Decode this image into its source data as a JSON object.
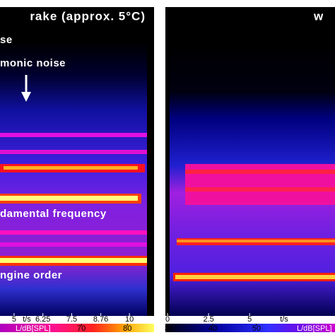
{
  "panels": [
    {
      "title": "rake (approx. 5°C)",
      "annotations": [
        "se",
        "monic noise",
        "damental frequency",
        "ngine order"
      ],
      "x_axis": {
        "label": "t/s",
        "xlim": [
          4.39,
          11.07
        ],
        "xticks": [
          5,
          6.25,
          7.5,
          8.76,
          10
        ]
      },
      "colorbar": {
        "label": "L/dB[SPL]",
        "lim": [
          52.3,
          85.8
        ],
        "ticks": [
          70,
          80
        ]
      }
    },
    {
      "title": "w",
      "annotations": [],
      "x_axis": {
        "label": "t/s",
        "xlim": [
          -0.13,
          10.2
        ],
        "xticks": [
          0,
          2.5,
          5
        ]
      },
      "colorbar": {
        "label": "L/dB[SPL]",
        "lim": [
          29.2,
          67.9
        ],
        "ticks": [
          30,
          40,
          50
        ]
      }
    }
  ]
}
